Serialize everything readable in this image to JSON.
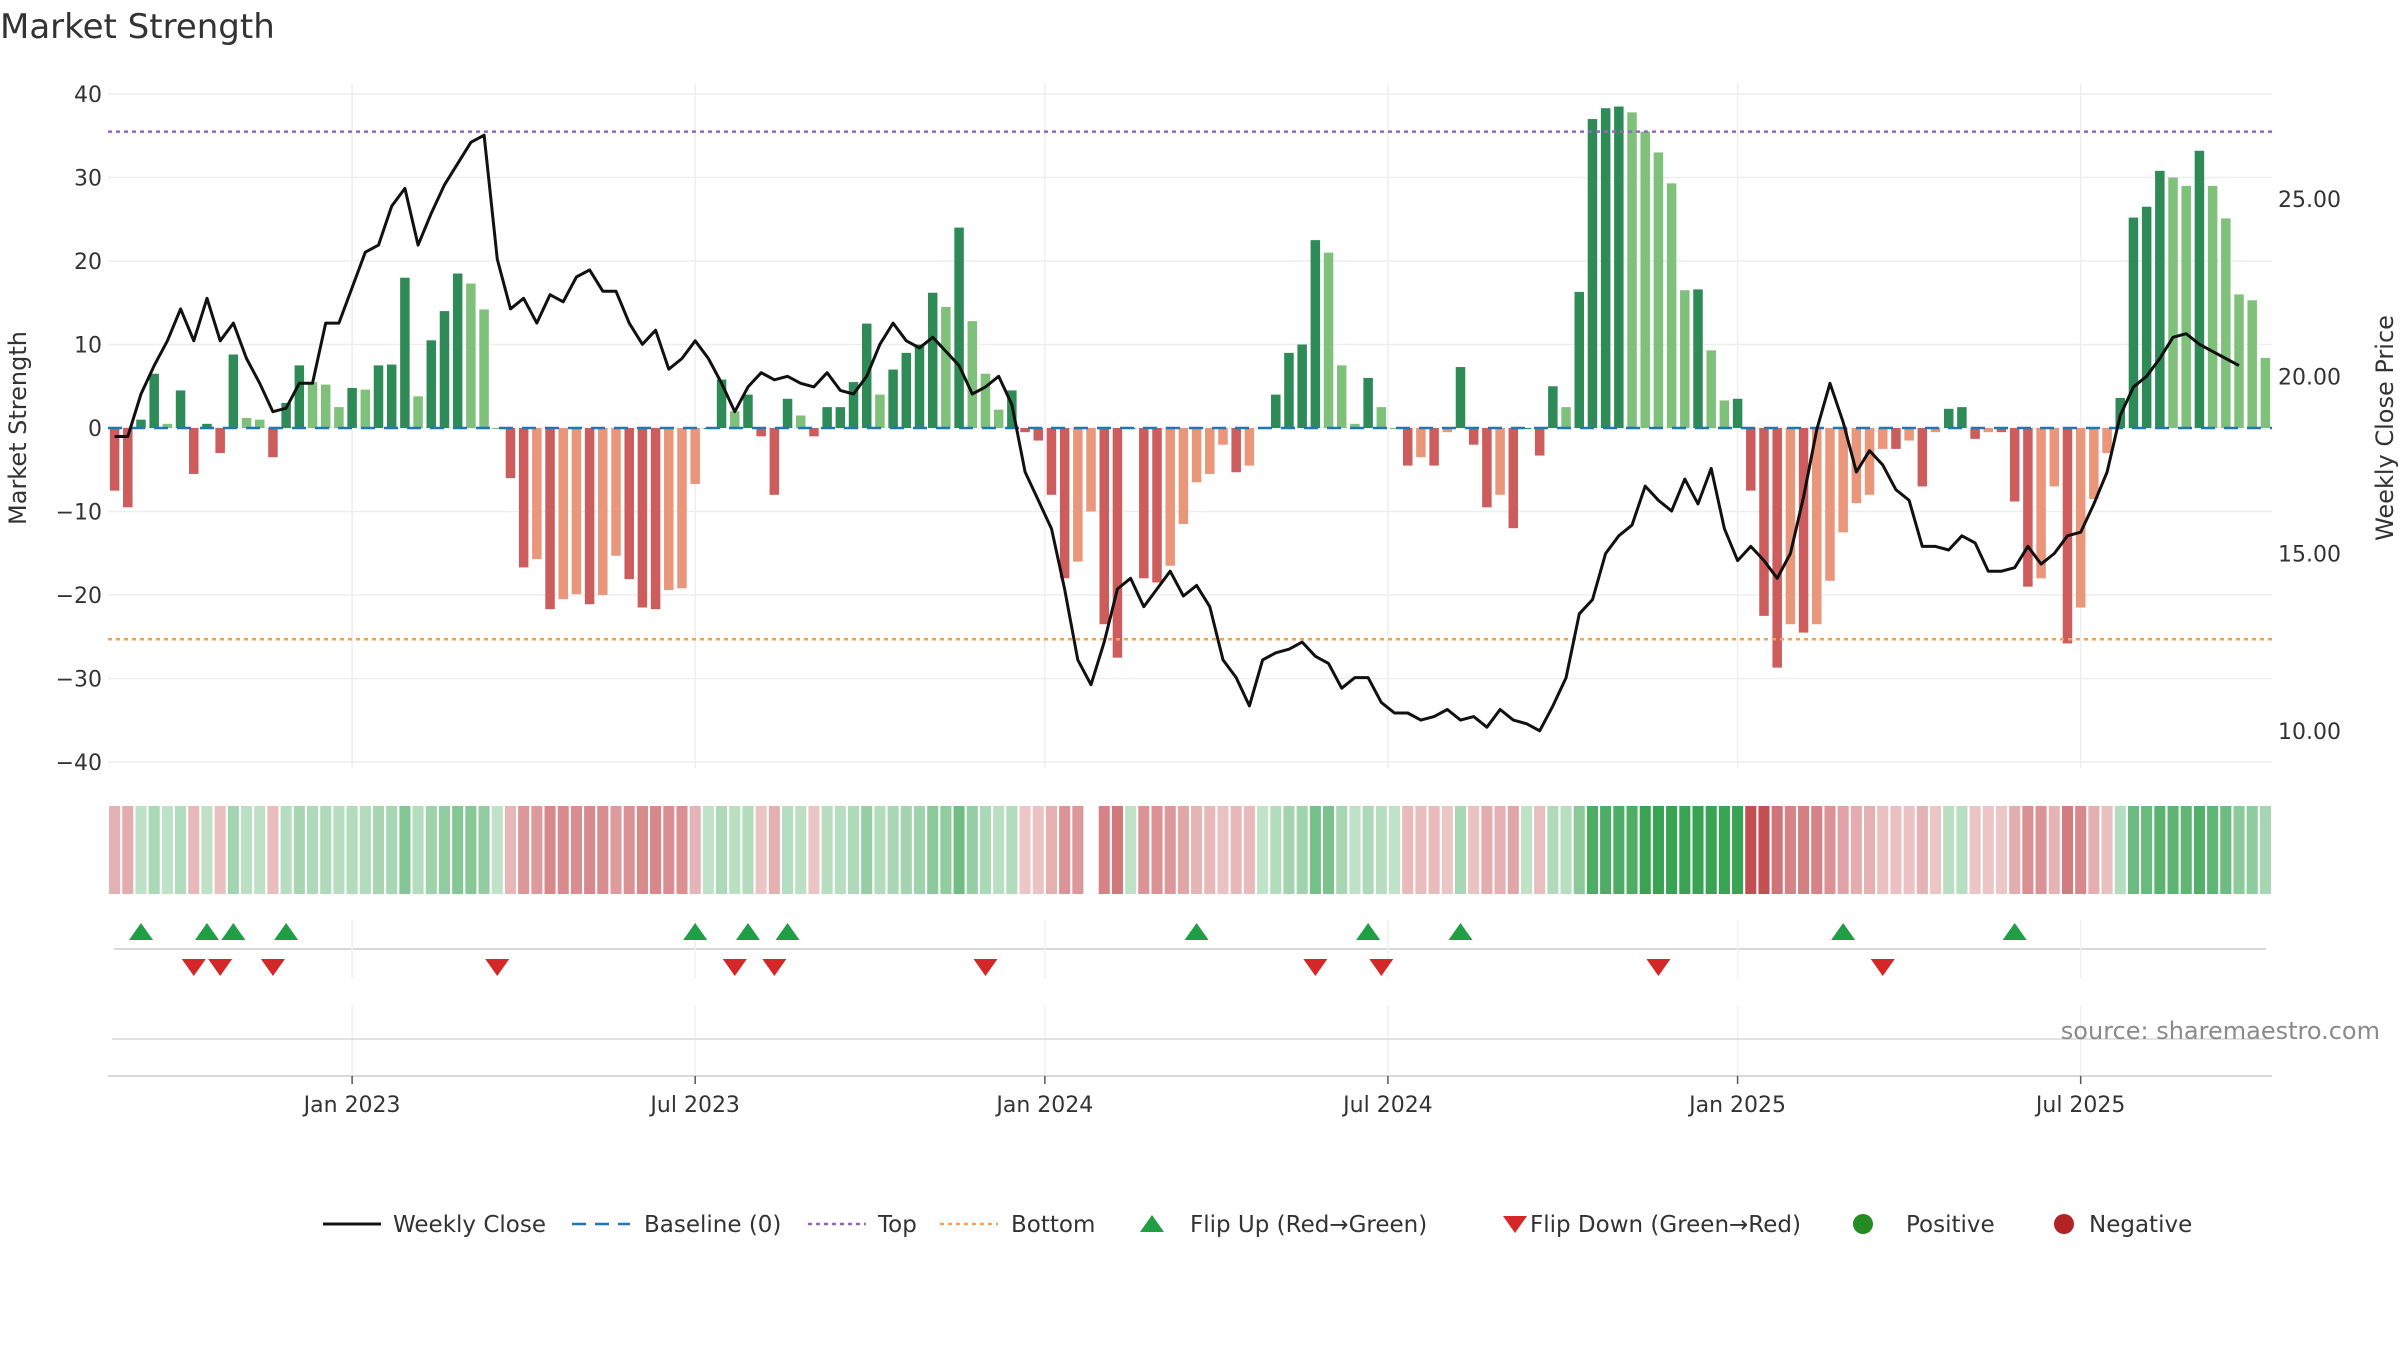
{
  "chart_data": {
    "type": "bar",
    "title": "Market Strength",
    "ylabel": "Market Strength",
    "y2label": "Weekly Close Price",
    "source": "source: sharemaestro.com",
    "ylim": [
      -40,
      40
    ],
    "y2lim": [
      8,
      28
    ],
    "yticks": [
      40,
      30,
      20,
      10,
      0,
      -10,
      -20,
      -30,
      -40
    ],
    "yticklabels": [
      "40",
      "30",
      "20",
      "10",
      "0",
      "−10",
      "−20",
      "−30",
      "−40"
    ],
    "y2ticks": [
      25,
      20,
      15,
      10
    ],
    "y2ticklabels": [
      "25.00",
      "20.00",
      "15.00",
      "10.00"
    ],
    "top_line": 35.5,
    "bottom_line": -25.3,
    "x_ticks": [
      {
        "label": "Jan 2023",
        "week": 18
      },
      {
        "label": "Jul 2023",
        "week": 44
      },
      {
        "label": "Jan 2024",
        "week": 70.5
      },
      {
        "label": "Jul 2024",
        "week": 96.5
      },
      {
        "label": "Jan 2025",
        "week": 123
      },
      {
        "label": "Jul 2025",
        "week": 149
      }
    ],
    "strength": [
      -7.5,
      -9.5,
      1,
      6.5,
      0.5,
      4.5,
      -5.5,
      0.5,
      -3,
      8.8,
      1.2,
      1,
      -3.5,
      3,
      7.5,
      5.5,
      5.2,
      2.5,
      4.8,
      4.6,
      7.5,
      7.6,
      18,
      3.8,
      10.5,
      14,
      18.5,
      17.3,
      14.2,
      0,
      -6,
      -16.7,
      -15.7,
      -21.7,
      -20.5,
      -19.9,
      -21.1,
      -20,
      -15.3,
      -18.1,
      -21.5,
      -21.7,
      -19.4,
      -19.2,
      -6.7,
      0,
      5.8,
      2,
      4,
      -1,
      -8,
      3.5,
      1.5,
      -1,
      2.5,
      2.5,
      5.5,
      12.5,
      4,
      7,
      9,
      10,
      16.2,
      14.5,
      24,
      12.8,
      6.5,
      2.2,
      4.5,
      -0.5,
      -1.5,
      -8,
      -18,
      -16,
      -10,
      -23.5,
      -27.5,
      0,
      -18,
      -18.5,
      -16.5,
      -11.5,
      -6.5,
      -5.5,
      -2,
      -5.3,
      -4.5,
      0,
      4,
      9,
      10,
      22.5,
      21,
      7.5,
      0.5,
      6,
      2.5,
      0,
      -4.5,
      -3.5,
      -4.5,
      -0.5,
      7.3,
      -2,
      -9.5,
      -8,
      -12,
      0,
      -3.3,
      5,
      2.5,
      16.3,
      37,
      38.3,
      38.5,
      37.8,
      35.5,
      33,
      29.3,
      16.5,
      16.6,
      9.3,
      3.3,
      3.5,
      -7.5,
      -22.5,
      -28.7,
      -23.5,
      -24.5,
      -23.5,
      -18.3,
      -12.5,
      -9,
      -8,
      -2.5,
      -2.5,
      -1.5,
      -7,
      -0.5,
      2.3,
      2.5,
      -1.3,
      -0.5,
      -0.5,
      -8.8,
      -19,
      -18,
      -7,
      -25.8,
      -21.5,
      -8.5,
      -3,
      3.6,
      25.2,
      26.5,
      30.8,
      30,
      29,
      33.2,
      29,
      25.1,
      16,
      15.3,
      8.4
    ],
    "weekly_close": [
      18.3,
      18.3,
      19.5,
      20.3,
      21,
      21.9,
      21,
      22.2,
      21,
      21.5,
      20.5,
      19.8,
      19,
      19.1,
      19.8,
      19.8,
      21.5,
      21.5,
      22.5,
      23.5,
      23.7,
      24.8,
      25.3,
      23.7,
      24.6,
      25.4,
      26,
      26.6,
      26.8,
      23.3,
      21.9,
      22.2,
      21.5,
      22.3,
      22.1,
      22.8,
      23,
      22.4,
      22.4,
      21.5,
      20.9,
      21.3,
      20.2,
      20.5,
      21,
      20.5,
      19.8,
      19,
      19.7,
      20.1,
      19.9,
      20,
      19.8,
      19.7,
      20.1,
      19.6,
      19.5,
      20,
      20.9,
      21.5,
      21,
      20.8,
      21.1,
      20.7,
      20.3,
      19.5,
      19.7,
      20,
      19.2,
      17.3,
      16.5,
      15.7,
      14,
      12,
      11.3,
      12.5,
      14,
      14.3,
      13.5,
      14,
      14.5,
      13.8,
      14.1,
      13.5,
      12,
      11.5,
      10.7,
      12,
      12.2,
      12.3,
      12.5,
      12.1,
      11.9,
      11.2,
      11.5,
      11.5,
      10.8,
      10.5,
      10.5,
      10.3,
      10.4,
      10.6,
      10.3,
      10.4,
      10.1,
      10.6,
      10.3,
      10.2,
      10,
      10.7,
      11.5,
      13.3,
      13.7,
      15,
      15.5,
      15.8,
      16.9,
      16.5,
      16.2,
      17.1,
      16.4,
      17.4,
      15.7,
      14.8,
      15.2,
      14.8,
      14.3,
      15,
      16.6,
      18.5,
      19.8,
      18.7,
      17.3,
      17.9,
      17.5,
      16.8,
      16.5,
      15.2,
      15.2,
      15.1,
      15.5,
      15.3,
      14.5,
      14.5,
      14.6,
      15.2,
      14.7,
      15,
      15.5,
      15.6,
      16.4,
      17.3,
      18.9,
      19.7,
      20,
      20.5,
      21.1,
      21.2,
      20.9,
      20.7,
      20.5,
      20.3
    ],
    "strip_dark_weeks": [
      116,
      117,
      118,
      119,
      120,
      121,
      122,
      123,
      124,
      125
    ],
    "flip_up_weeks": [
      2,
      7,
      9,
      13,
      44,
      48,
      51,
      82,
      95,
      102,
      131,
      144
    ],
    "flip_down_weeks": [
      6,
      8,
      12,
      29,
      47,
      50,
      66,
      91,
      96,
      117,
      134
    ],
    "colors": {
      "line": "#111111",
      "baseline": "#1f77b4",
      "top": "#9467bd",
      "bottom": "#f2a25c",
      "pos_strong": "#2e8b57",
      "pos_light": "#7fc17b",
      "neg_strong": "#cd5c5c",
      "neg_light": "#e9967a",
      "flip_up": "#1f9e45",
      "flip_down": "#d62728",
      "positive": "#228b22",
      "negative": "#b22222",
      "grid": "#eeeeee"
    },
    "legend": [
      {
        "label": "Weekly Close",
        "kind": "line"
      },
      {
        "label": "Baseline (0)",
        "kind": "baseline"
      },
      {
        "label": "Top",
        "kind": "top"
      },
      {
        "label": "Bottom",
        "kind": "bottom"
      },
      {
        "label": "Flip Up (Red→Green)",
        "kind": "up"
      },
      {
        "label": "Flip Down (Green→Red)",
        "kind": "down"
      },
      {
        "label": "Positive",
        "kind": "pos"
      },
      {
        "label": "Negative",
        "kind": "neg"
      }
    ],
    "legend_position": "bottom"
  }
}
